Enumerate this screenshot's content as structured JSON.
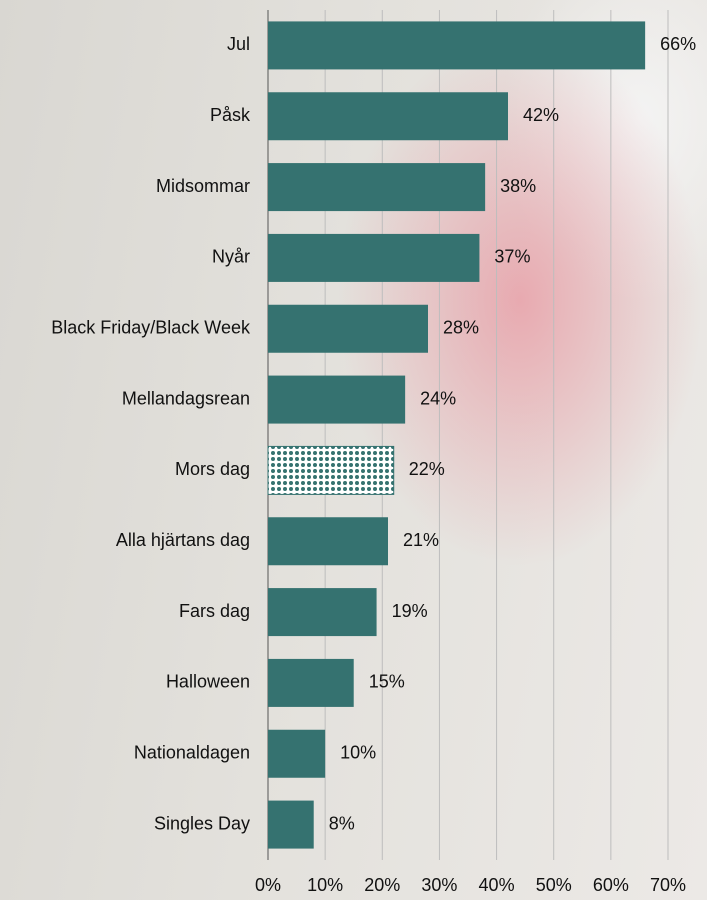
{
  "chart_data": {
    "type": "hbar",
    "categories": [
      "Jul",
      "Påsk",
      "Midsommar",
      "Nyår",
      "Black Friday/Black Week",
      "Mellandagsrean",
      "Mors dag",
      "Alla hjärtans dag",
      "Fars dag",
      "Halloween",
      "Nationaldagen",
      "Singles Day"
    ],
    "values": [
      66,
      42,
      38,
      37,
      28,
      24,
      22,
      21,
      19,
      15,
      10,
      8
    ],
    "value_labels": [
      "66%",
      "42%",
      "38%",
      "37%",
      "28%",
      "24%",
      "22%",
      "21%",
      "19%",
      "15%",
      "10%",
      "8%"
    ],
    "color": "#357270",
    "hatched": [
      6
    ],
    "xlim": [
      0,
      70
    ],
    "xticks": [
      {
        "value": 0,
        "label": "0%"
      },
      {
        "value": 10,
        "label": "10%"
      },
      {
        "value": 20,
        "label": "20%"
      },
      {
        "value": 30,
        "label": "30%"
      },
      {
        "value": 40,
        "label": "40%"
      },
      {
        "value": 50,
        "label": "50%"
      },
      {
        "value": 60,
        "label": "60%"
      },
      {
        "value": 70,
        "label": "70%"
      }
    ],
    "grid": true
  }
}
